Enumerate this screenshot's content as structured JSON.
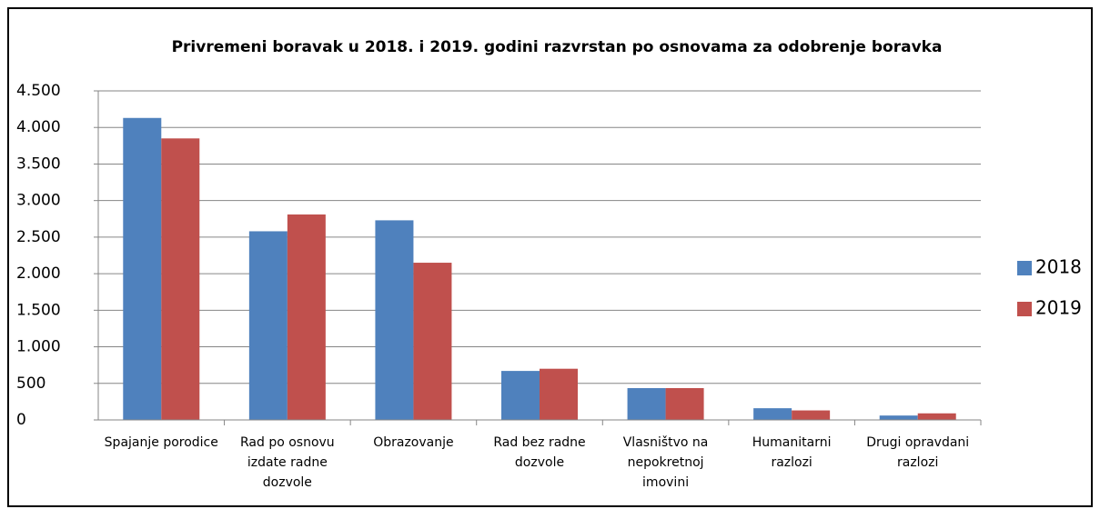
{
  "chart_data": {
    "type": "bar",
    "title": "Privremeni boravak u 2018. i 2019. godini razvrstan po osnovama za odobrenje boravka",
    "categories": [
      "Spajanje porodice",
      "Rad po osnovu izdate radne dozvole",
      "Obrazovanje",
      "Rad bez radne dozvole",
      "Vlasništvo na nepokretnoj imovini",
      "Humanitarni razlozi",
      "Drugi opravdani razlozi"
    ],
    "series": [
      {
        "name": "2018",
        "color": "#4f81bd",
        "values": [
          4130,
          2580,
          2730,
          670,
          435,
          160,
          60
        ]
      },
      {
        "name": "2019",
        "color": "#c0504d",
        "values": [
          3850,
          2810,
          2150,
          700,
          435,
          130,
          90
        ]
      }
    ],
    "ylim": [
      0,
      4500
    ],
    "yticks": [
      0,
      {
        "value": 500,
        "label": "500"
      },
      {
        "value": 1000,
        "label": "1.000"
      },
      {
        "value": 1500,
        "label": "1.500"
      },
      {
        "value": 2000,
        "label": "2.000"
      },
      {
        "value": 2500,
        "label": "2.500"
      },
      {
        "value": 3000,
        "label": "3.000"
      },
      {
        "value": 3500,
        "label": "3.500"
      },
      {
        "value": 4000,
        "label": "4.000"
      },
      {
        "value": 4500,
        "label": "4.500"
      }
    ],
    "grid": true,
    "legend": "right"
  }
}
